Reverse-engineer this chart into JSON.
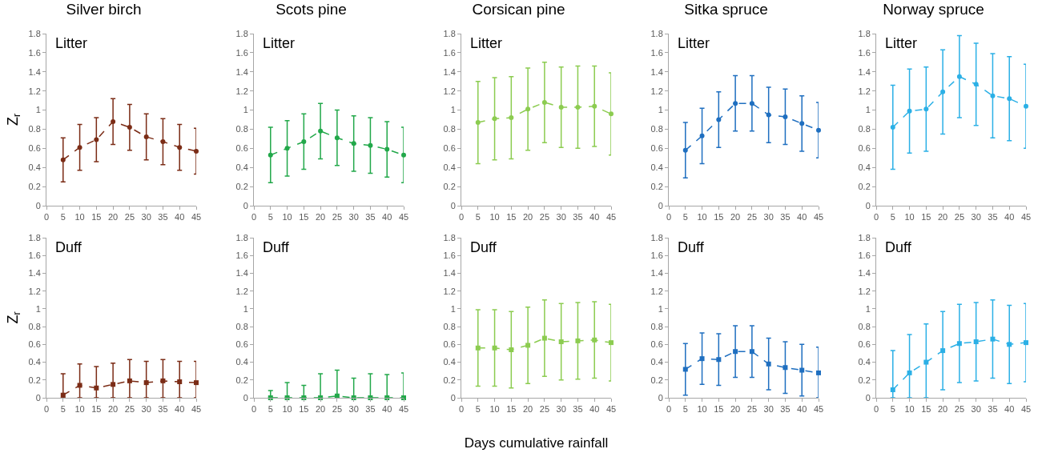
{
  "chart_data": [
    {
      "type": "line",
      "title": "Silver birch",
      "ylabel": "Z$_{r}$",
      "annotations": [
        "Litter"
      ],
      "marker": "circle",
      "line_style": "dashed",
      "grid": false,
      "xlim": [
        0,
        45
      ],
      "xticks": [
        0,
        5,
        10,
        15,
        20,
        25,
        30,
        35,
        40,
        45
      ],
      "ylim": [
        0,
        1.8
      ],
      "yticks": [
        0,
        0.2,
        0.4,
        0.6,
        0.8,
        1,
        1.2,
        1.4,
        1.6,
        1.8
      ],
      "x": [
        5,
        10,
        15,
        20,
        25,
        30,
        35,
        40,
        45
      ],
      "series": [
        {
          "color": "#7b2c16",
          "values": [
            0.48,
            0.61,
            0.69,
            0.88,
            0.82,
            0.72,
            0.67,
            0.61,
            0.57
          ],
          "errors": [
            0.23,
            0.24,
            0.23,
            0.24,
            0.24,
            0.24,
            0.24,
            0.24,
            0.24
          ]
        }
      ]
    },
    {
      "type": "line",
      "title": "Scots pine",
      "annotations": [
        "Litter"
      ],
      "marker": "circle",
      "line_style": "dashed",
      "grid": false,
      "xlim": [
        0,
        45
      ],
      "xticks": [
        0,
        5,
        10,
        15,
        20,
        25,
        30,
        35,
        40,
        45
      ],
      "ylim": [
        0,
        1.8
      ],
      "yticks": [
        0,
        0.2,
        0.4,
        0.6,
        0.8,
        1,
        1.2,
        1.4,
        1.6,
        1.8
      ],
      "x": [
        5,
        10,
        15,
        20,
        25,
        30,
        35,
        40,
        45
      ],
      "series": [
        {
          "color": "#22a84a",
          "values": [
            0.53,
            0.6,
            0.67,
            0.78,
            0.71,
            0.65,
            0.63,
            0.59,
            0.53
          ],
          "errors": [
            0.29,
            0.29,
            0.29,
            0.29,
            0.29,
            0.29,
            0.29,
            0.29,
            0.29
          ]
        }
      ]
    },
    {
      "type": "line",
      "title": "Corsican pine",
      "annotations": [
        "Litter"
      ],
      "marker": "circle",
      "line_style": "dashed",
      "grid": false,
      "xlim": [
        0,
        45
      ],
      "xticks": [
        0,
        5,
        10,
        15,
        20,
        25,
        30,
        35,
        40,
        45
      ],
      "ylim": [
        0,
        1.8
      ],
      "yticks": [
        0,
        0.2,
        0.4,
        0.6,
        0.8,
        1,
        1.2,
        1.4,
        1.6,
        1.8
      ],
      "x": [
        5,
        10,
        15,
        20,
        25,
        30,
        35,
        40,
        45
      ],
      "series": [
        {
          "color": "#8ccc50",
          "values": [
            0.87,
            0.91,
            0.92,
            1.01,
            1.08,
            1.03,
            1.03,
            1.04,
            0.96
          ],
          "errors": [
            0.43,
            0.43,
            0.43,
            0.43,
            0.42,
            0.42,
            0.43,
            0.42,
            0.43
          ]
        }
      ]
    },
    {
      "type": "line",
      "title": "Sitka spruce",
      "annotations": [
        "Litter"
      ],
      "marker": "circle",
      "line_style": "dashed",
      "grid": false,
      "xlim": [
        0,
        45
      ],
      "xticks": [
        0,
        5,
        10,
        15,
        20,
        25,
        30,
        35,
        40,
        45
      ],
      "ylim": [
        0,
        1.8
      ],
      "yticks": [
        0,
        0.2,
        0.4,
        0.6,
        0.8,
        1,
        1.2,
        1.4,
        1.6,
        1.8
      ],
      "x": [
        5,
        10,
        15,
        20,
        25,
        30,
        35,
        40,
        45
      ],
      "series": [
        {
          "color": "#1f6fc0",
          "values": [
            0.58,
            0.73,
            0.9,
            1.07,
            1.07,
            0.95,
            0.93,
            0.86,
            0.79
          ],
          "errors": [
            0.29,
            0.29,
            0.29,
            0.29,
            0.29,
            0.29,
            0.29,
            0.29,
            0.29
          ]
        }
      ]
    },
    {
      "type": "line",
      "title": "Norway spruce",
      "annotations": [
        "Litter"
      ],
      "marker": "circle",
      "line_style": "dashed",
      "grid": false,
      "xlim": [
        0,
        45
      ],
      "xticks": [
        0,
        5,
        10,
        15,
        20,
        25,
        30,
        35,
        40,
        45
      ],
      "ylim": [
        0,
        1.8
      ],
      "yticks": [
        0,
        0.2,
        0.4,
        0.6,
        0.8,
        1,
        1.2,
        1.4,
        1.6,
        1.8
      ],
      "x": [
        5,
        10,
        15,
        20,
        25,
        30,
        35,
        40,
        45
      ],
      "series": [
        {
          "color": "#2bb0e6",
          "values": [
            0.82,
            0.99,
            1.01,
            1.19,
            1.35,
            1.27,
            1.15,
            1.12,
            1.04
          ],
          "errors": [
            0.44,
            0.44,
            0.44,
            0.44,
            0.43,
            0.43,
            0.44,
            0.44,
            0.44
          ]
        }
      ]
    },
    {
      "type": "line",
      "ylabel": "Z$_{r}$",
      "annotations": [
        "Duff"
      ],
      "marker": "square",
      "line_style": "dashed",
      "grid": false,
      "xlim": [
        0,
        45
      ],
      "xticks": [
        0,
        5,
        10,
        15,
        20,
        25,
        30,
        35,
        40,
        45
      ],
      "ylim": [
        0,
        1.8
      ],
      "yticks": [
        0,
        0.2,
        0.4,
        0.6,
        0.8,
        1,
        1.2,
        1.4,
        1.6,
        1.8
      ],
      "x": [
        5,
        10,
        15,
        20,
        25,
        30,
        35,
        40,
        45
      ],
      "series": [
        {
          "color": "#7b2c16",
          "values": [
            0.03,
            0.14,
            0.11,
            0.15,
            0.19,
            0.17,
            0.19,
            0.18,
            0.17
          ],
          "errors": [
            [
              0,
              0.27
            ],
            [
              0,
              0.38
            ],
            [
              0,
              0.35
            ],
            [
              0,
              0.39
            ],
            [
              0,
              0.43
            ],
            [
              0,
              0.41
            ],
            [
              0,
              0.43
            ],
            [
              0,
              0.41
            ],
            [
              0,
              0.41
            ]
          ]
        }
      ]
    },
    {
      "type": "line",
      "annotations": [
        "Duff"
      ],
      "marker": "square",
      "line_style": "dashed",
      "grid": false,
      "xlim": [
        0,
        45
      ],
      "xticks": [
        0,
        5,
        10,
        15,
        20,
        25,
        30,
        35,
        40,
        45
      ],
      "ylim": [
        0,
        1.8
      ],
      "yticks": [
        0,
        0.2,
        0.4,
        0.6,
        0.8,
        1,
        1.2,
        1.4,
        1.6,
        1.8
      ],
      "x": [
        5,
        10,
        15,
        20,
        25,
        30,
        35,
        40,
        45
      ],
      "series": [
        {
          "color": "#22a84a",
          "values": [
            0,
            0,
            0,
            0,
            0.02,
            0,
            0,
            0,
            0
          ],
          "errors": [
            [
              0,
              0.08
            ],
            [
              0,
              0.17
            ],
            [
              0,
              0.14
            ],
            [
              0,
              0.27
            ],
            [
              0,
              0.31
            ],
            [
              0,
              0.22
            ],
            [
              0,
              0.27
            ],
            [
              0,
              0.26
            ],
            [
              0,
              0.28
            ]
          ]
        }
      ]
    },
    {
      "type": "line",
      "xlabel": "Days cumulative rainfall",
      "annotations": [
        "Duff"
      ],
      "marker": "square",
      "line_style": "dashed",
      "grid": false,
      "xlim": [
        0,
        45
      ],
      "xticks": [
        0,
        5,
        10,
        15,
        20,
        25,
        30,
        35,
        40,
        45
      ],
      "ylim": [
        0,
        1.8
      ],
      "yticks": [
        0,
        0.2,
        0.4,
        0.6,
        0.8,
        1,
        1.2,
        1.4,
        1.6,
        1.8
      ],
      "x": [
        5,
        10,
        15,
        20,
        25,
        30,
        35,
        40,
        45
      ],
      "series": [
        {
          "color": "#8ccc50",
          "values": [
            0.56,
            0.56,
            0.54,
            0.59,
            0.67,
            0.63,
            0.64,
            0.65,
            0.62
          ],
          "errors": [
            0.43,
            0.43,
            0.43,
            0.43,
            0.43,
            0.43,
            0.43,
            0.43,
            0.43
          ]
        }
      ]
    },
    {
      "type": "line",
      "annotations": [
        "Duff"
      ],
      "marker": "square",
      "line_style": "dashed",
      "grid": false,
      "xlim": [
        0,
        45
      ],
      "xticks": [
        0,
        5,
        10,
        15,
        20,
        25,
        30,
        35,
        40,
        45
      ],
      "ylim": [
        0,
        1.8
      ],
      "yticks": [
        0,
        0.2,
        0.4,
        0.6,
        0.8,
        1,
        1.2,
        1.4,
        1.6,
        1.8
      ],
      "x": [
        5,
        10,
        15,
        20,
        25,
        30,
        35,
        40,
        45
      ],
      "series": [
        {
          "color": "#1f6fc0",
          "values": [
            0.32,
            0.44,
            0.43,
            0.52,
            0.52,
            0.38,
            0.34,
            0.31,
            0.28
          ],
          "errors": [
            0.29,
            0.29,
            0.29,
            0.29,
            0.29,
            0.29,
            0.29,
            0.29,
            [
              0,
              0.57
            ]
          ]
        }
      ]
    },
    {
      "type": "line",
      "annotations": [
        "Duff"
      ],
      "marker": "square",
      "line_style": "dashed",
      "grid": false,
      "xlim": [
        0,
        45
      ],
      "xticks": [
        0,
        5,
        10,
        15,
        20,
        25,
        30,
        35,
        40,
        45
      ],
      "ylim": [
        0,
        1.8
      ],
      "yticks": [
        0,
        0.2,
        0.4,
        0.6,
        0.8,
        1,
        1.2,
        1.4,
        1.6,
        1.8
      ],
      "x": [
        5,
        10,
        15,
        20,
        25,
        30,
        35,
        40,
        45
      ],
      "series": [
        {
          "color": "#2bb0e6",
          "values": [
            0.09,
            0.28,
            0.4,
            0.53,
            0.61,
            0.63,
            0.66,
            0.6,
            0.62
          ],
          "errors": [
            [
              0,
              0.53
            ],
            [
              0,
              0.71
            ],
            [
              0,
              0.83
            ],
            0.44,
            0.44,
            0.44,
            0.44,
            0.44,
            0.44
          ]
        }
      ]
    }
  ]
}
